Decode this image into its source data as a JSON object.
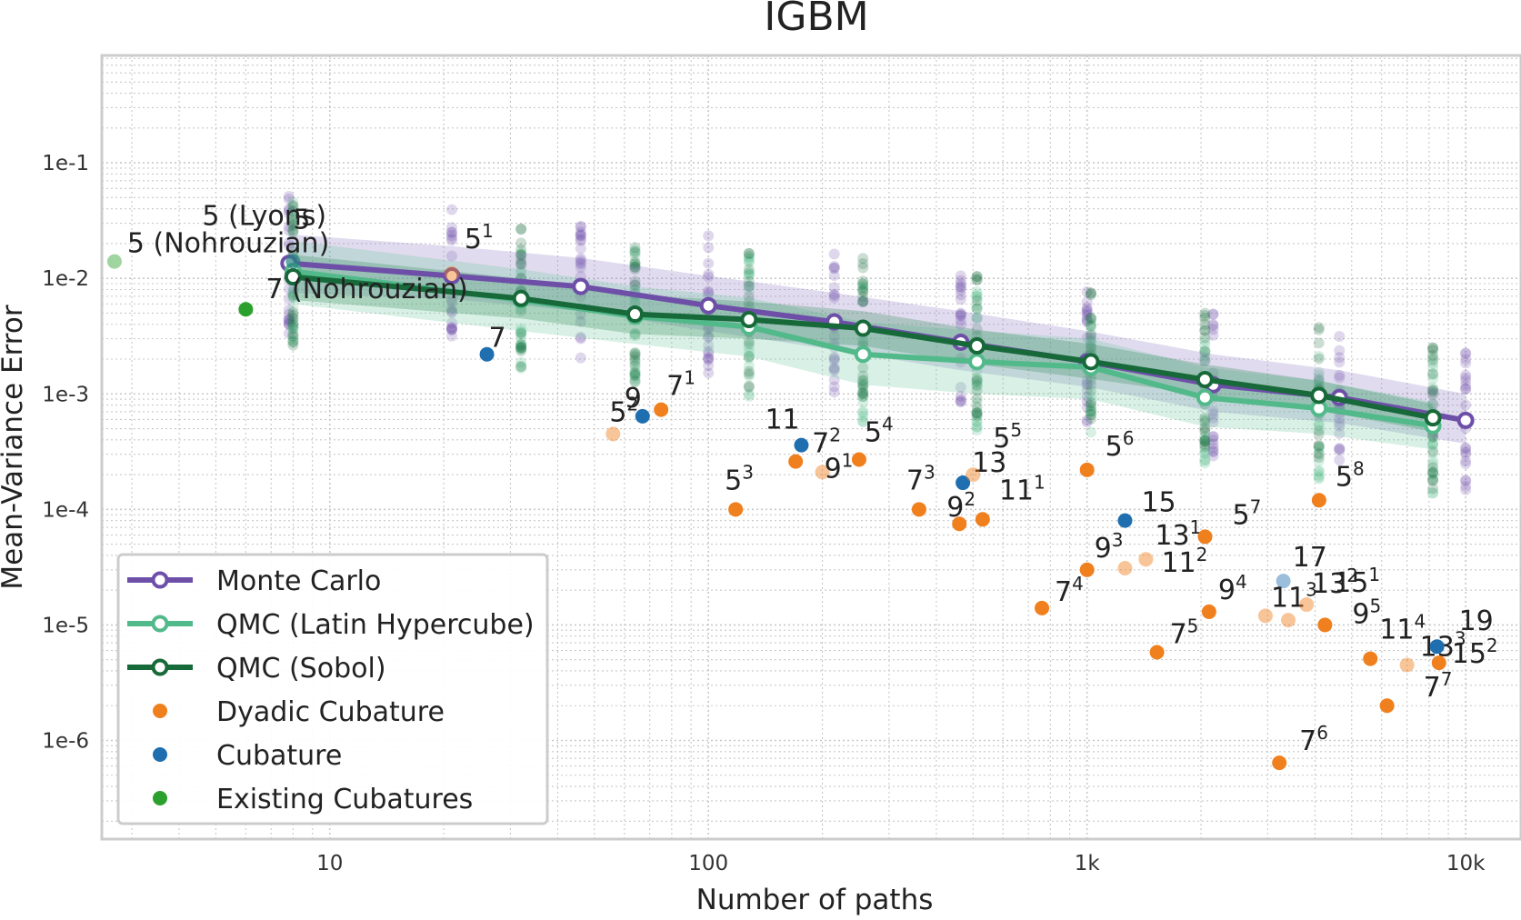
{
  "chart_data": {
    "type": "scatter",
    "title": "IGBM",
    "xlabel": "Number of paths",
    "ylabel": "Mean-Variance Error",
    "xscale": "log",
    "yscale": "log",
    "xlim": [
      2.5,
      14000
    ],
    "ylim": [
      1.4e-07,
      0.85
    ],
    "grid": true,
    "x_tick_labels": [
      {
        "value": 10,
        "label": "10"
      },
      {
        "value": 100,
        "label": "100"
      },
      {
        "value": 1000,
        "label": "1k"
      },
      {
        "value": 10000,
        "label": "10k"
      }
    ],
    "y_tick_labels": [
      {
        "value": 0.1,
        "label": "1e-1"
      },
      {
        "value": 0.01,
        "label": "1e-2"
      },
      {
        "value": 0.001,
        "label": "1e-3"
      },
      {
        "value": 0.0001,
        "label": "1e-4"
      },
      {
        "value": 1e-05,
        "label": "1e-5"
      },
      {
        "value": 1e-06,
        "label": "1e-6"
      }
    ],
    "legend": {
      "location": "lower-left",
      "entries": [
        {
          "label": "Monte Carlo",
          "kind": "line",
          "color": "#6e4fa8"
        },
        {
          "label": "QMC (Latin Hypercube)",
          "kind": "line",
          "color": "#52b98a"
        },
        {
          "label": "QMC (Sobol)",
          "kind": "line",
          "color": "#17693a"
        },
        {
          "label": "Dyadic Cubature",
          "kind": "dot",
          "color": "#f07f1d"
        },
        {
          "label": "Cubature",
          "kind": "dot",
          "color": "#1f6fb0"
        },
        {
          "label": "Existing Cubatures",
          "kind": "dot",
          "color": "#2ca02c"
        }
      ]
    },
    "series": [
      {
        "name": "Monte Carlo",
        "color": "#6e4fa8",
        "band_color": "#8f7cc2",
        "x": [
          7.8,
          21,
          46,
          100,
          215,
          464,
          1000,
          2154,
          4640,
          10000
        ],
        "y": [
          0.0135,
          0.0105,
          0.0085,
          0.0058,
          0.0042,
          0.0028,
          0.0019,
          0.0012,
          0.00093,
          0.00059
        ],
        "band_lower": [
          0.0075,
          0.0066,
          0.0052,
          0.0035,
          0.0024,
          0.0016,
          0.00115,
          0.0007,
          0.00056,
          0.00037
        ],
        "band_upper": [
          0.024,
          0.019,
          0.015,
          0.0105,
          0.0075,
          0.0052,
          0.0035,
          0.0022,
          0.0016,
          0.001
        ]
      },
      {
        "name": "QMC (Latin Hypercube)",
        "color": "#52b98a",
        "band_color": "#74c9a3",
        "x": [
          8,
          32,
          64,
          128,
          256,
          512,
          1024,
          2048,
          4096,
          8192
        ],
        "y": [
          0.0115,
          0.0065,
          0.0047,
          0.0038,
          0.0022,
          0.0019,
          0.0017,
          0.00093,
          0.00075,
          0.00053
        ],
        "band_lower": [
          0.006,
          0.0035,
          0.0027,
          0.0021,
          0.0012,
          0.001,
          0.0009,
          0.00052,
          0.00045,
          0.00033
        ],
        "band_upper": [
          0.021,
          0.012,
          0.0085,
          0.0068,
          0.0042,
          0.0035,
          0.003,
          0.0017,
          0.0013,
          0.00085
        ]
      },
      {
        "name": "QMC (Sobol)",
        "color": "#17693a",
        "band_color": "#2e8a55",
        "x": [
          8,
          32,
          64,
          128,
          256,
          512,
          1024,
          2048,
          4096,
          8192
        ],
        "y": [
          0.0103,
          0.0067,
          0.0049,
          0.0044,
          0.0037,
          0.0026,
          0.0019,
          0.00133,
          0.00097,
          0.00062
        ],
        "band_lower": [
          0.0065,
          0.0045,
          0.0033,
          0.003,
          0.0026,
          0.0018,
          0.00135,
          0.00098,
          0.00072,
          0.00047
        ],
        "band_upper": [
          0.016,
          0.01,
          0.0072,
          0.0063,
          0.0052,
          0.0036,
          0.0027,
          0.0018,
          0.0013,
          0.00082
        ]
      }
    ],
    "points": [
      {
        "group": "Existing Cubatures",
        "color": "#2ca02c",
        "x": 2.7,
        "y": 0.014,
        "faded": true,
        "label": "5 (Nohrouzian)",
        "sup": ""
      },
      {
        "group": "Existing Cubatures",
        "color": "#2ca02c",
        "x": 6,
        "y": 0.0054,
        "faded": false,
        "label": "7 (Nohrouzian)",
        "sup": ""
      },
      {
        "group": "Existing Cubatures",
        "color": "#2ca02c",
        "x": 8,
        "y": 0.014,
        "faded": true,
        "label": "5 (Lyons)",
        "sup": ""
      },
      {
        "group": "Cubature",
        "color": "#1f6fb0",
        "x": 8,
        "y": 0.014,
        "faded": true,
        "label": "5",
        "sup": ""
      },
      {
        "group": "Dyadic Cubature",
        "color": "#f07f1d",
        "x": 21,
        "y": 0.011,
        "faded": true,
        "label": "5",
        "sup": "1"
      },
      {
        "group": "Cubature",
        "color": "#1f6fb0",
        "x": 26,
        "y": 0.0022,
        "faded": false,
        "label": "7",
        "sup": ""
      },
      {
        "group": "Dyadic Cubature",
        "color": "#f07f1d",
        "x": 56,
        "y": 0.00045,
        "faded": true,
        "label": "5",
        "sup": "2"
      },
      {
        "group": "Cubature",
        "color": "#1f6fb0",
        "x": 67,
        "y": 0.00064,
        "faded": false,
        "label": "9",
        "sup": ""
      },
      {
        "group": "Dyadic Cubature",
        "color": "#f07f1d",
        "x": 75,
        "y": 0.00073,
        "faded": false,
        "label": "7",
        "sup": "1"
      },
      {
        "group": "Dyadic Cubature",
        "color": "#f07f1d",
        "x": 118,
        "y": 0.0001,
        "faded": false,
        "label": "5",
        "sup": "3"
      },
      {
        "group": "Dyadic Cubature",
        "color": "#f07f1d",
        "x": 170,
        "y": 0.00026,
        "faded": false,
        "label": "7",
        "sup": "2"
      },
      {
        "group": "Cubature",
        "color": "#1f6fb0",
        "x": 176,
        "y": 0.00036,
        "faded": false,
        "label": "11",
        "sup": ""
      },
      {
        "group": "Dyadic Cubature",
        "color": "#f07f1d",
        "x": 200,
        "y": 0.00021,
        "faded": true,
        "label": "9",
        "sup": "1"
      },
      {
        "group": "Dyadic Cubature",
        "color": "#f07f1d",
        "x": 250,
        "y": 0.00027,
        "faded": false,
        "label": "5",
        "sup": "4"
      },
      {
        "group": "Dyadic Cubature",
        "color": "#f07f1d",
        "x": 360,
        "y": 0.0001,
        "faded": false,
        "label": "7",
        "sup": "3"
      },
      {
        "group": "Dyadic Cubature",
        "color": "#f07f1d",
        "x": 460,
        "y": 7.5e-05,
        "faded": false,
        "label": "9",
        "sup": "2"
      },
      {
        "group": "Cubature",
        "color": "#1f6fb0",
        "x": 470,
        "y": 0.00017,
        "faded": false,
        "label": "13",
        "sup": ""
      },
      {
        "group": "Dyadic Cubature",
        "color": "#f07f1d",
        "x": 500,
        "y": 0.0002,
        "faded": true,
        "label": "5",
        "sup": "5"
      },
      {
        "group": "Dyadic Cubature",
        "color": "#f07f1d",
        "x": 530,
        "y": 8.2e-05,
        "faded": false,
        "label": "11",
        "sup": "1"
      },
      {
        "group": "Dyadic Cubature",
        "color": "#f07f1d",
        "x": 760,
        "y": 1.4e-05,
        "faded": false,
        "label": "7",
        "sup": "4"
      },
      {
        "group": "Dyadic Cubature",
        "color": "#f07f1d",
        "x": 1000,
        "y": 0.00022,
        "faded": false,
        "label": "5",
        "sup": "6"
      },
      {
        "group": "Dyadic Cubature",
        "color": "#f07f1d",
        "x": 1000,
        "y": 3e-05,
        "faded": false,
        "label": "9",
        "sup": "3"
      },
      {
        "group": "Cubature",
        "color": "#1f6fb0",
        "x": 1260,
        "y": 8e-05,
        "faded": false,
        "label": "15",
        "sup": ""
      },
      {
        "group": "Dyadic Cubature",
        "color": "#f07f1d",
        "x": 1260,
        "y": 3.1e-05,
        "faded": true,
        "label": "11",
        "sup": "2"
      },
      {
        "group": "Dyadic Cubature",
        "color": "#f07f1d",
        "x": 1430,
        "y": 3.7e-05,
        "faded": true,
        "label": "13",
        "sup": "1"
      },
      {
        "group": "Dyadic Cubature",
        "color": "#f07f1d",
        "x": 1530,
        "y": 5.8e-06,
        "faded": false,
        "label": "7",
        "sup": "5"
      },
      {
        "group": "Dyadic Cubature",
        "color": "#f07f1d",
        "x": 2050,
        "y": 5.8e-05,
        "faded": false,
        "label": "5",
        "sup": "7"
      },
      {
        "group": "Dyadic Cubature",
        "color": "#f07f1d",
        "x": 2100,
        "y": 1.3e-05,
        "faded": false,
        "label": "9",
        "sup": "4"
      },
      {
        "group": "Dyadic Cubature",
        "color": "#f07f1d",
        "x": 2960,
        "y": 1.2e-05,
        "faded": true,
        "label": "11",
        "sup": "3"
      },
      {
        "group": "Dyadic Cubature",
        "color": "#f07f1d",
        "x": 3220,
        "y": 6.4e-07,
        "faded": false,
        "label": "7",
        "sup": "6"
      },
      {
        "group": "Cubature",
        "color": "#1f6fb0",
        "x": 3300,
        "y": 2.4e-05,
        "faded": true,
        "label": "17",
        "sup": ""
      },
      {
        "group": "Dyadic Cubature",
        "color": "#f07f1d",
        "x": 3400,
        "y": 1.1e-05,
        "faded": true,
        "label": "13",
        "sup": "2"
      },
      {
        "group": "Dyadic Cubature",
        "color": "#f07f1d",
        "x": 3800,
        "y": 1.5e-05,
        "faded": true,
        "label": "15",
        "sup": "1"
      },
      {
        "group": "Dyadic Cubature",
        "color": "#f07f1d",
        "x": 4100,
        "y": 0.00012,
        "faded": false,
        "label": "5",
        "sup": "8"
      },
      {
        "group": "Dyadic Cubature",
        "color": "#f07f1d",
        "x": 4250,
        "y": 1e-05,
        "faded": false,
        "label": "9",
        "sup": "5"
      },
      {
        "group": "Dyadic Cubature",
        "color": "#f07f1d",
        "x": 5600,
        "y": 5.1e-06,
        "faded": false,
        "label": "11",
        "sup": "4"
      },
      {
        "group": "Dyadic Cubature",
        "color": "#f07f1d",
        "x": 6200,
        "y": 2e-06,
        "faded": false,
        "label": "7",
        "sup": "7"
      },
      {
        "group": "Dyadic Cubature",
        "color": "#f07f1d",
        "x": 7000,
        "y": 4.5e-06,
        "faded": true,
        "label": "13",
        "sup": "3"
      },
      {
        "group": "Cubature",
        "color": "#1f6fb0",
        "x": 8400,
        "y": 6.5e-06,
        "faded": false,
        "label": "19",
        "sup": ""
      },
      {
        "group": "Dyadic Cubature",
        "color": "#f07f1d",
        "x": 8500,
        "y": 4.7e-06,
        "faded": false,
        "label": "15",
        "sup": "2"
      }
    ]
  }
}
